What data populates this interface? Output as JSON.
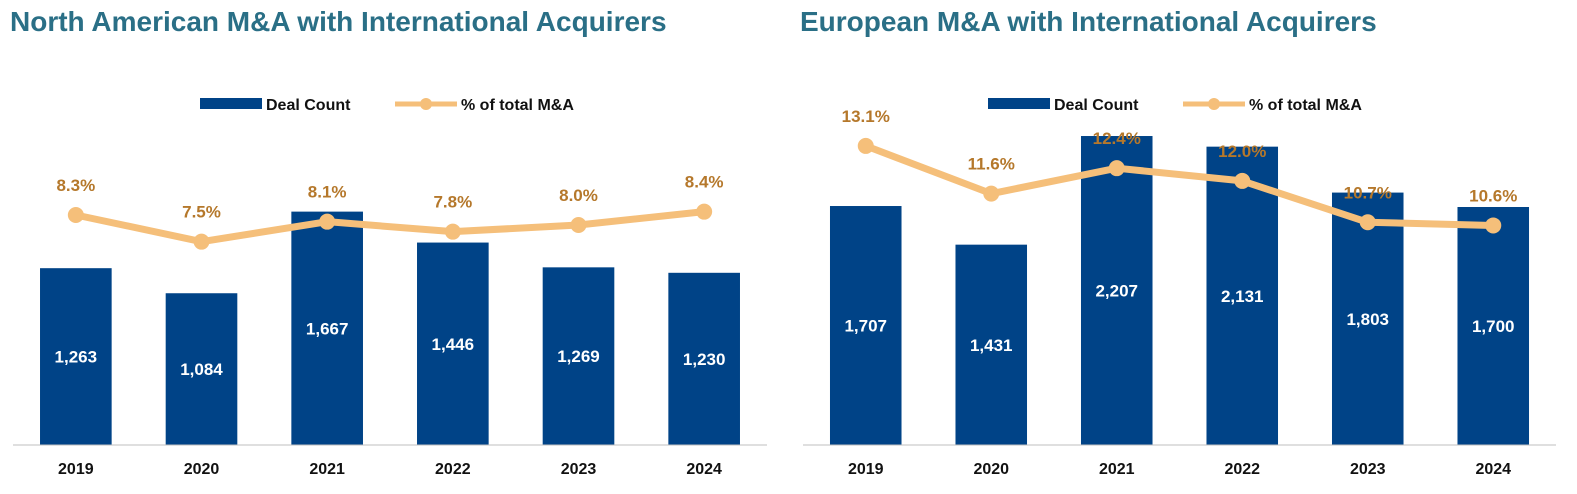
{
  "colors": {
    "title": "#2a6f86",
    "bar": "#004387",
    "line": "#f5bf7a",
    "pct_label": "#b5782b",
    "axis": "#bfbfbf"
  },
  "chart_data": [
    {
      "type": "bar",
      "title": "North American M&A with International Acquirers",
      "categories": [
        "2019",
        "2020",
        "2021",
        "2022",
        "2023",
        "2024"
      ],
      "series": [
        {
          "name": "Deal Count",
          "type": "bar",
          "axis": "left",
          "values": [
            1263,
            1084,
            1667,
            1446,
            1269,
            1230
          ],
          "labels": [
            "1,263",
            "1,084",
            "1,667",
            "1,446",
            "1,269",
            "1,230"
          ]
        },
        {
          "name": "% of total M&A",
          "type": "line",
          "axis": "right",
          "values": [
            8.3,
            7.5,
            8.1,
            7.8,
            8.0,
            8.4
          ],
          "labels": [
            "8.3%",
            "7.5%",
            "8.1%",
            "7.8%",
            "8.0%",
            "8.4%"
          ]
        }
      ],
      "bar_ylim": [
        0,
        2500
      ],
      "line_ylim": [
        1.4,
        11.9
      ],
      "legend": "top-center",
      "grid": false
    },
    {
      "type": "bar",
      "title": "European M&A with International Acquirers",
      "categories": [
        "2019",
        "2020",
        "2021",
        "2022",
        "2023",
        "2024"
      ],
      "series": [
        {
          "name": "Deal Count",
          "type": "bar",
          "axis": "left",
          "values": [
            1707,
            1431,
            2207,
            2131,
            1803,
            1700
          ],
          "labels": [
            "1,707",
            "1,431",
            "2,207",
            "2,131",
            "1,803",
            "1,700"
          ]
        },
        {
          "name": "% of total M&A",
          "type": "line",
          "axis": "right",
          "values": [
            13.1,
            11.6,
            12.4,
            12.0,
            10.7,
            10.6
          ],
          "labels": [
            "13.1%",
            "11.6%",
            "12.4%",
            "12.0%",
            "10.7%",
            "10.6%"
          ]
        }
      ],
      "bar_ylim": [
        0,
        2500
      ],
      "line_ylim": [
        3.7,
        14.7
      ],
      "legend": "top-center",
      "grid": false
    }
  ]
}
